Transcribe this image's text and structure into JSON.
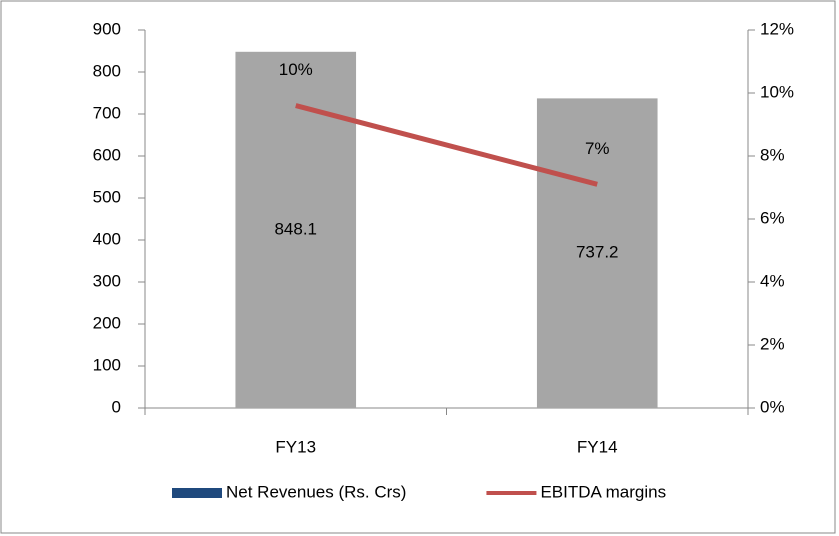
{
  "chart_data": {
    "type": "bar_line",
    "categories": [
      "FY13",
      "FY14"
    ],
    "series": [
      {
        "name": "Net Revenues (Rs. Crs)",
        "type": "bar",
        "color": "#a6a6a6",
        "legend_color": "#1f497d",
        "values": [
          848.1,
          737.2
        ],
        "value_labels": [
          "848.1",
          "737.2"
        ]
      },
      {
        "name": "EBITDA margins",
        "type": "line",
        "axis": "y2",
        "color": "#c0504d",
        "values": [
          9.6,
          7.1
        ],
        "value_labels": [
          "10%",
          "7%"
        ]
      }
    ],
    "ylim": [
      0,
      900
    ],
    "yticks": [
      0,
      100,
      200,
      300,
      400,
      500,
      600,
      700,
      800,
      900
    ],
    "y2lim": [
      0,
      12
    ],
    "y2ticks": [
      {
        "value": 0,
        "label": "0%"
      },
      {
        "value": 2,
        "label": "2%"
      },
      {
        "value": 4,
        "label": "4%"
      },
      {
        "value": 6,
        "label": "6%"
      },
      {
        "value": 8,
        "label": "8%"
      },
      {
        "value": 10,
        "label": "10%"
      },
      {
        "value": 12,
        "label": "12%"
      }
    ],
    "legend": "bottom"
  }
}
